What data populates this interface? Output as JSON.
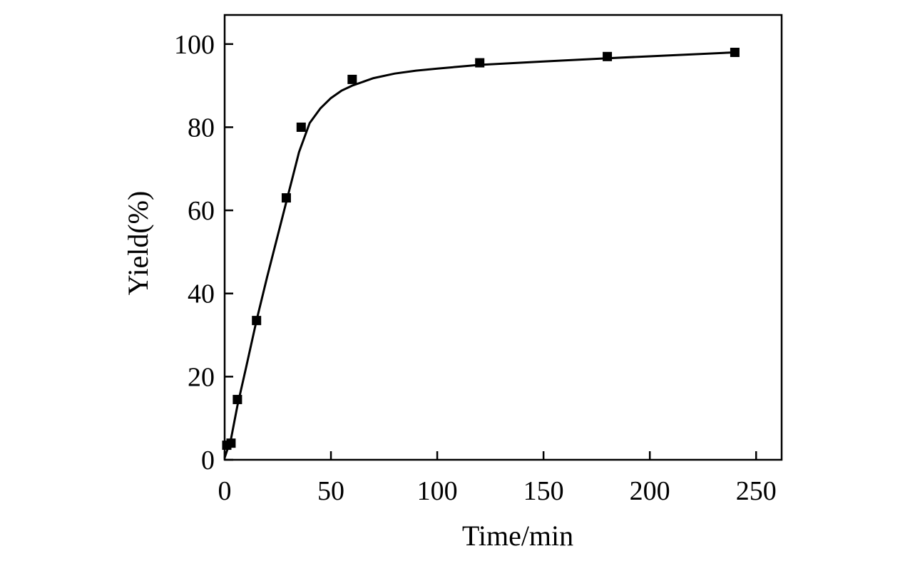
{
  "chart_data": {
    "type": "scatter",
    "title": "",
    "xlabel": "Time/min",
    "ylabel": "Yield(%)",
    "xlim": [
      0,
      262
    ],
    "ylim": [
      0,
      107
    ],
    "x_ticks": [
      0,
      50,
      100,
      150,
      200,
      250
    ],
    "y_ticks": [
      0,
      20,
      40,
      60,
      80,
      100
    ],
    "grid": false,
    "legend": "none",
    "series": [
      {
        "marker": "square",
        "color": "#000000",
        "x": [
          1,
          3,
          6,
          15,
          29,
          36,
          60,
          120,
          180,
          240
        ],
        "y": [
          3.5,
          4,
          14.5,
          33.5,
          63,
          80,
          91.5,
          95.5,
          97,
          98
        ]
      },
      {
        "type": "line",
        "color": "#000000",
        "x": [
          0,
          3,
          6,
          10,
          15,
          20,
          25,
          30,
          35,
          40,
          45,
          50,
          55,
          60,
          70,
          80,
          90,
          100,
          120,
          150,
          180,
          210,
          240
        ],
        "y": [
          0.5,
          5,
          13,
          22,
          33.5,
          44,
          54,
          64,
          74,
          81,
          84.5,
          87,
          88.8,
          90,
          91.8,
          92.9,
          93.6,
          94.1,
          95,
          95.8,
          96.6,
          97.3,
          98
        ]
      }
    ]
  }
}
